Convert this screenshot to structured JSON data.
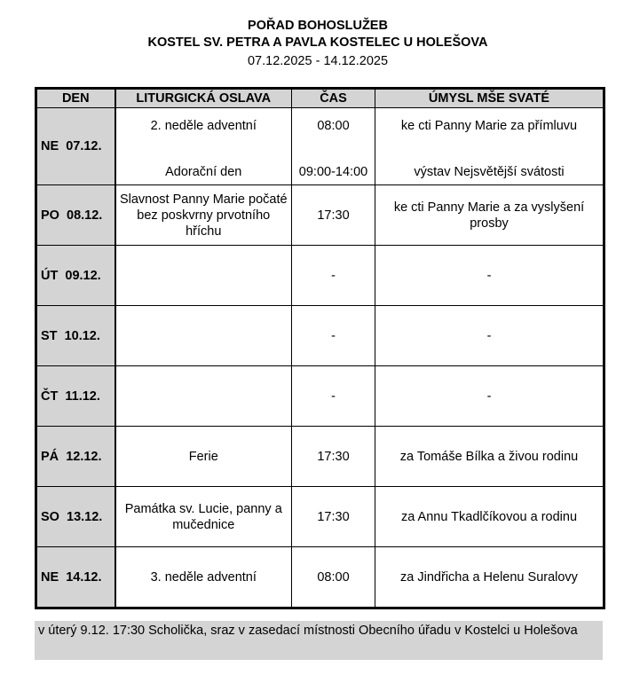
{
  "header": {
    "title": "POŘAD BOHOSLUŽEB",
    "subtitle": "KOSTEL SV. PETRA A PAVLA KOSTELEC U HOLEŠOVA",
    "dates": "07.12.2025 - 14.12.2025"
  },
  "columns": [
    "DEN",
    "LITURGICKÁ OSLAVA",
    "ČAS",
    "ÚMYSL MŠE SVATÉ"
  ],
  "rows": [
    {
      "den": "NE  07.12.",
      "entries": [
        {
          "oslava": "2. neděle adventní",
          "cas": "08:00",
          "umysl": "ke cti Panny Marie za přímluvu"
        },
        {
          "oslava": "Adorační den",
          "cas": "09:00-14:00",
          "umysl": "výstav Nejsvětější svátosti"
        }
      ]
    },
    {
      "den": "PO  08.12.",
      "entries": [
        {
          "oslava": "Slavnost Panny Marie počaté bez poskvrny prvotního hříchu",
          "cas": "17:30",
          "umysl": "ke cti Panny Marie a za vyslyšení prosby"
        }
      ]
    },
    {
      "den": "ÚT  09.12.",
      "entries": [
        {
          "oslava": "",
          "cas": "-",
          "umysl": "-"
        }
      ]
    },
    {
      "den": "ST  10.12.",
      "entries": [
        {
          "oslava": "",
          "cas": "-",
          "umysl": "-"
        }
      ]
    },
    {
      "den": "ČT  11.12.",
      "entries": [
        {
          "oslava": "",
          "cas": "-",
          "umysl": "-"
        }
      ]
    },
    {
      "den": "PÁ  12.12.",
      "entries": [
        {
          "oslava": "Ferie",
          "cas": "17:30",
          "umysl": "za Tomáše Bílka a živou rodinu"
        }
      ]
    },
    {
      "den": "SO  13.12.",
      "entries": [
        {
          "oslava": "Památka sv. Lucie, panny a mučednice",
          "cas": "17:30",
          "umysl": "za Annu Tkadlčíkovou a rodinu"
        }
      ]
    },
    {
      "den": "NE  14.12.",
      "entries": [
        {
          "oslava": "3. neděle adventní",
          "cas": "08:00",
          "umysl": "za Jindřicha a Helenu Suralovy"
        }
      ]
    }
  ],
  "note": "v úterý 9.12. 17:30 Scholička, sraz v zasedací místnosti Obecního úřadu v Kostelci u Holešova"
}
